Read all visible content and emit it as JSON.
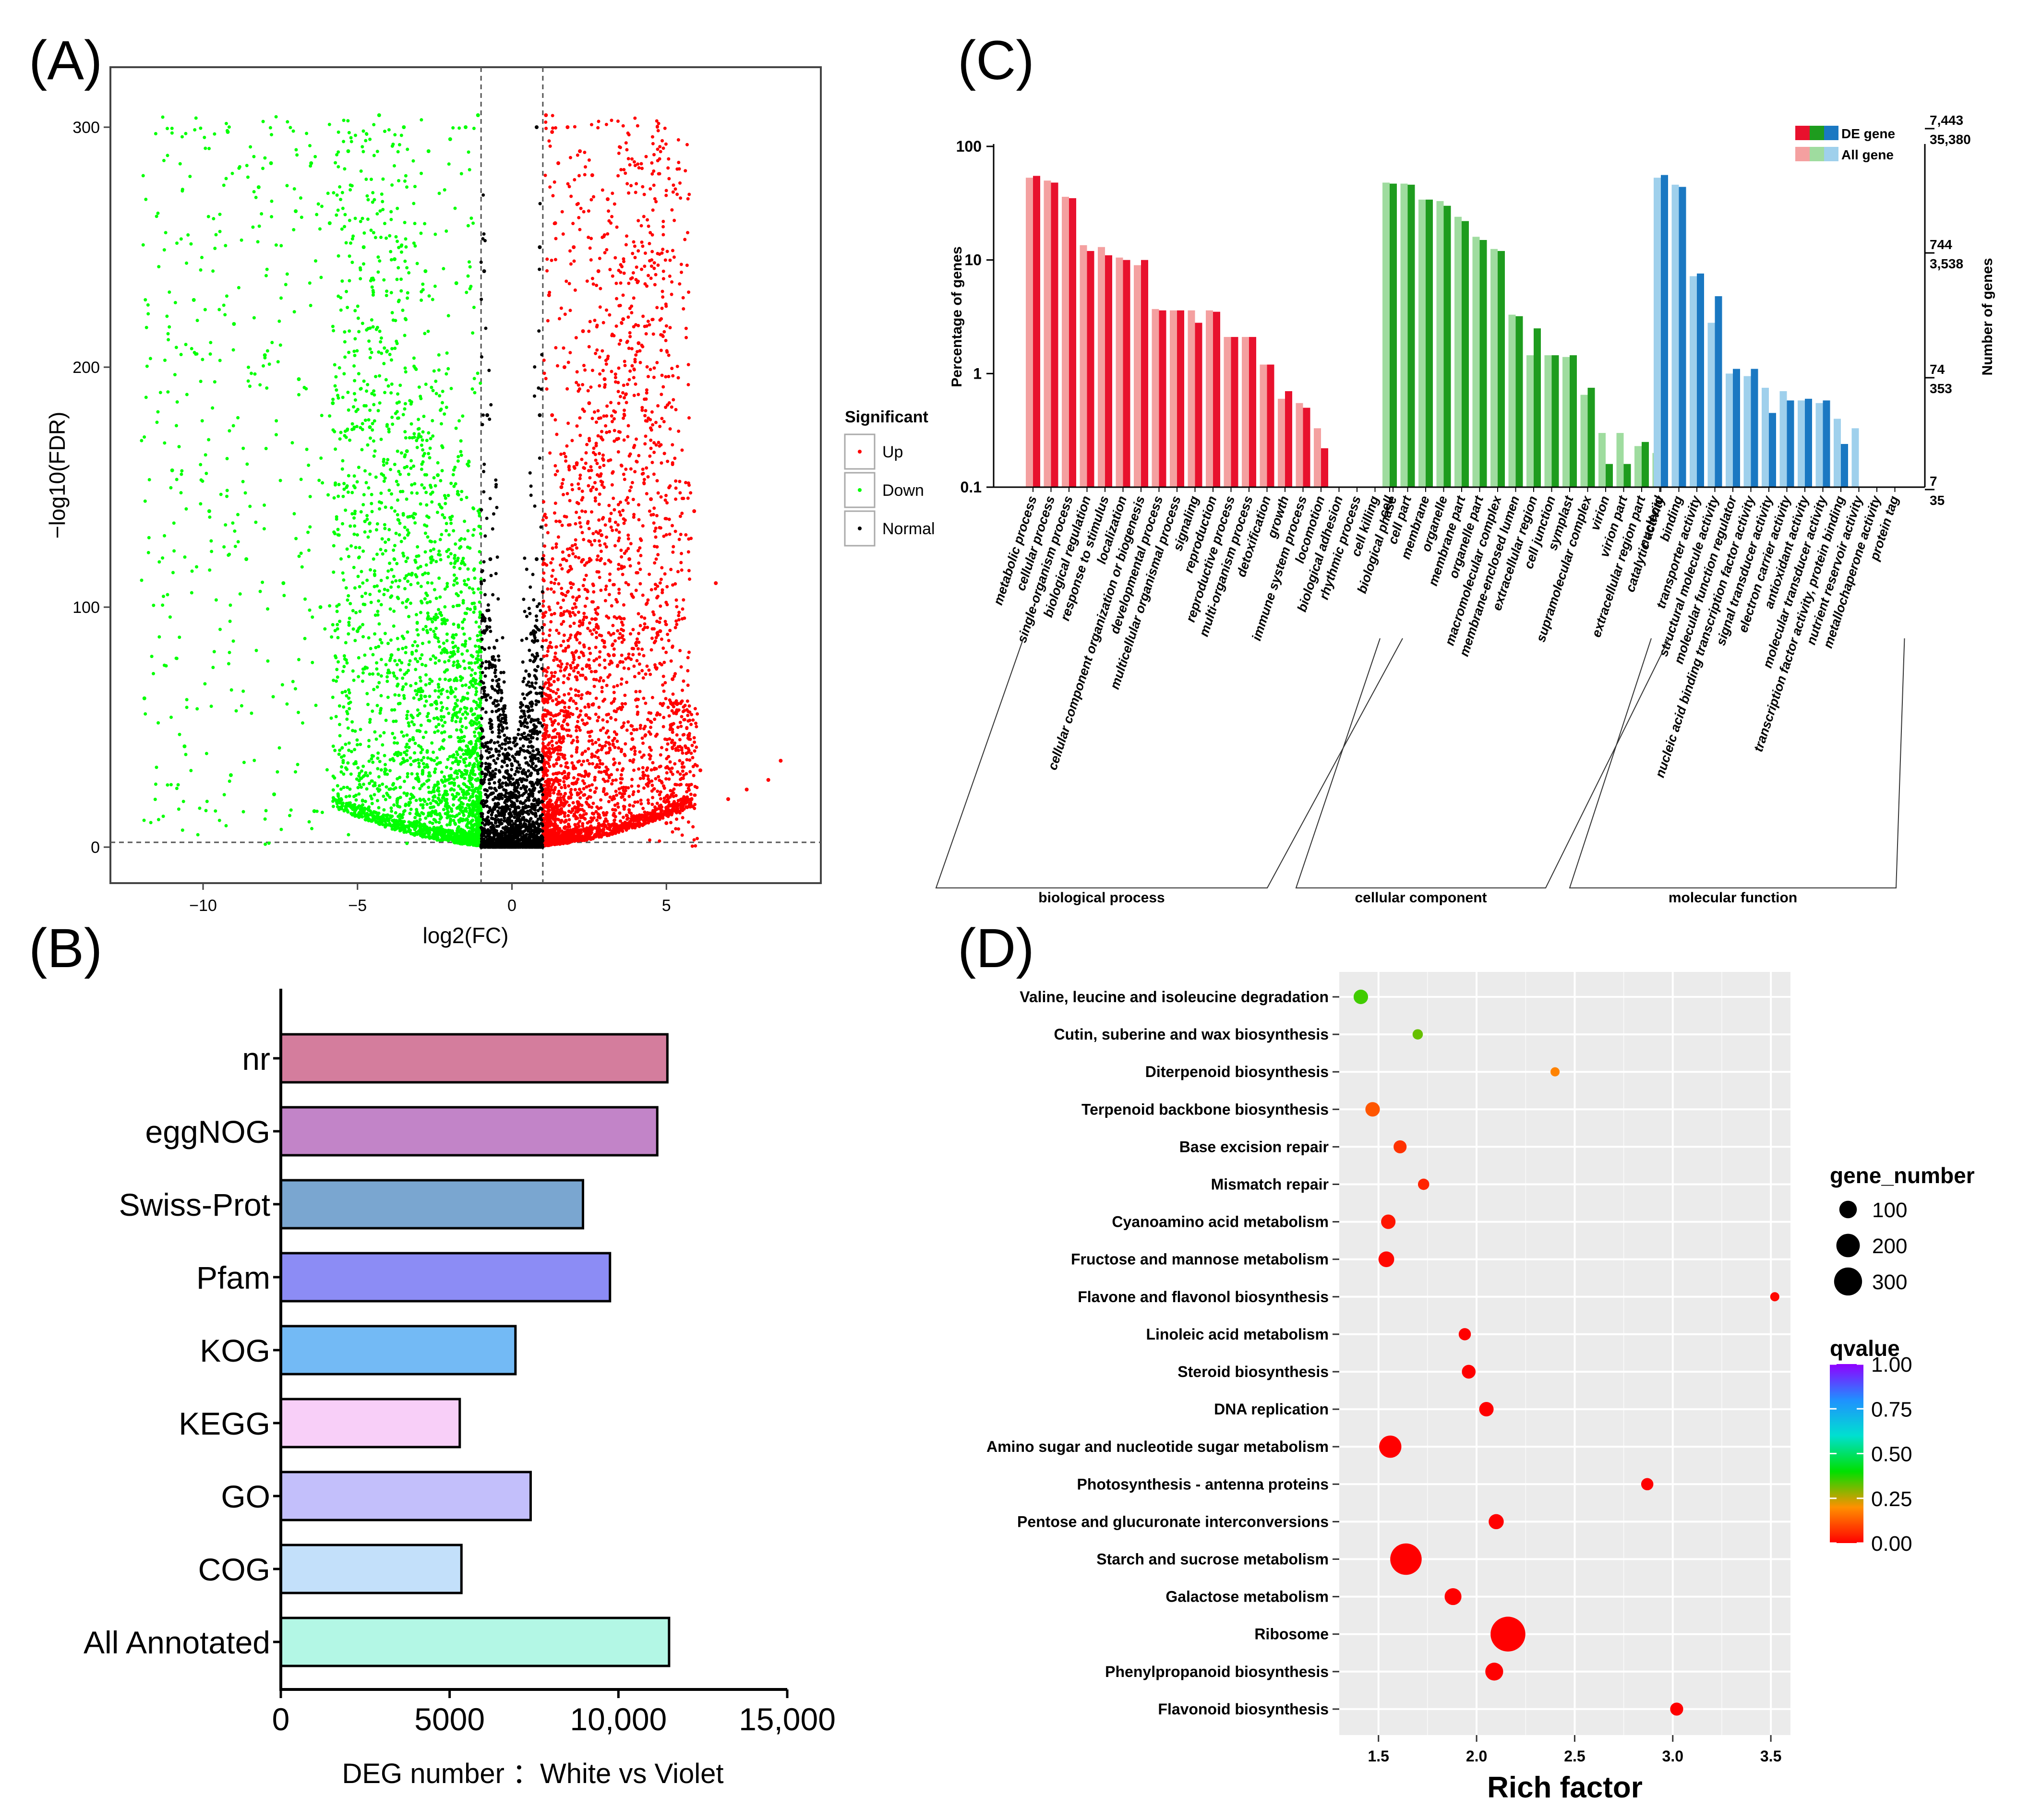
{
  "panels": {
    "A": {
      "letter": "(A)"
    },
    "B": {
      "letter": "(B)"
    },
    "C": {
      "letter": "(C)"
    },
    "D": {
      "letter": "(D)"
    }
  },
  "chart_data": [
    {
      "id": "A",
      "type": "scatter",
      "title": "",
      "xlabel": "log2(FC)",
      "ylabel": "−log10(FDR)",
      "xlim": [
        -13,
        10
      ],
      "ylim": [
        -15,
        325
      ],
      "xticks": [
        -10,
        -5,
        0,
        5
      ],
      "xtick_labels": [
        "−10",
        "−5",
        "0",
        "5"
      ],
      "yticks": [
        0,
        100,
        200,
        300
      ],
      "ytick_labels": [
        "0",
        "100",
        "200",
        "300"
      ],
      "thresholds": {
        "fc": [
          -1,
          1
        ],
        "fdr": 2
      },
      "legend": {
        "title": "Significant",
        "position": "right",
        "entries": [
          {
            "label": "Up",
            "color": "#ff0000"
          },
          {
            "label": "Down",
            "color": "#00ff00"
          },
          {
            "label": "Normal",
            "color": "#000000"
          }
        ]
      },
      "series": [
        {
          "name": "Up",
          "color": "#ff0000",
          "points": [
            [
              1.1,
              305
            ],
            [
              1.3,
              298
            ],
            [
              1.5,
              285
            ],
            [
              1.8,
              300
            ],
            [
              2.2,
              290
            ],
            [
              2.6,
              280
            ],
            [
              3.1,
              270
            ],
            [
              1.4,
              260
            ],
            [
              2.0,
              250
            ],
            [
              2.8,
              240
            ],
            [
              1.2,
              230
            ],
            [
              3.6,
              220
            ],
            [
              2.3,
              215
            ],
            [
              4.1,
              210
            ],
            [
              1.7,
              200
            ],
            [
              3.0,
              195
            ],
            [
              2.5,
              185
            ],
            [
              1.3,
              180
            ],
            [
              3.4,
              170
            ],
            [
              2.1,
              160
            ],
            [
              4.5,
              145
            ],
            [
              1.6,
              150
            ],
            [
              2.9,
              130
            ],
            [
              3.8,
              120
            ],
            [
              5.9,
              140
            ],
            [
              6.6,
              110
            ],
            [
              1.9,
              110
            ],
            [
              2.7,
              95
            ],
            [
              4.8,
              90
            ],
            [
              3.3,
              80
            ],
            [
              5.2,
              70
            ],
            [
              1.5,
              60
            ],
            [
              2.4,
              55
            ],
            [
              3.9,
              45
            ],
            [
              6.1,
              32
            ],
            [
              7.0,
              20
            ],
            [
              7.6,
              24
            ],
            [
              8.3,
              28
            ],
            [
              8.7,
              36
            ],
            [
              5.0,
              10
            ]
          ]
        },
        {
          "name": "Down",
          "color": "#00ff00",
          "points": [
            [
              -1.1,
              305
            ],
            [
              -1.5,
              300
            ],
            [
              -2.0,
              295
            ],
            [
              -2.7,
              290
            ],
            [
              -3.5,
              300
            ],
            [
              -4.3,
              305
            ],
            [
              -5.3,
              290
            ],
            [
              -6.5,
              285
            ],
            [
              -7.8,
              285
            ],
            [
              -9.2,
              298
            ],
            [
              -8.2,
              275
            ],
            [
              -7.0,
              265
            ],
            [
              -5.9,
              260
            ],
            [
              -4.8,
              250
            ],
            [
              -3.8,
              245
            ],
            [
              -2.8,
              240
            ],
            [
              -1.8,
              235
            ],
            [
              -10.3,
              228
            ],
            [
              -9.0,
              218
            ],
            [
              -8.0,
              205
            ],
            [
              -6.9,
              195
            ],
            [
              -5.8,
              185
            ],
            [
              -4.6,
              175
            ],
            [
              -3.4,
              165
            ],
            [
              -2.4,
              155
            ],
            [
              -11.0,
              157
            ],
            [
              -9.8,
              140
            ],
            [
              -8.6,
              120
            ],
            [
              -7.4,
              110
            ],
            [
              -6.2,
              100
            ],
            [
              -5.0,
              90
            ],
            [
              -3.9,
              80
            ],
            [
              -2.9,
              65
            ],
            [
              -1.9,
              55
            ],
            [
              -1.3,
              40
            ],
            [
              -11.9,
              62
            ],
            [
              -10.6,
              42
            ],
            [
              -9.1,
              30
            ],
            [
              -7.7,
              22
            ],
            [
              -6.4,
              15
            ]
          ]
        },
        {
          "name": "Normal",
          "color": "#000000",
          "points": [
            [
              -0.9,
              240
            ],
            [
              -0.8,
              180
            ],
            [
              -0.7,
              120
            ],
            [
              -0.9,
              90
            ],
            [
              -0.6,
              60
            ],
            [
              -0.5,
              40
            ],
            [
              -0.4,
              25
            ],
            [
              -0.3,
              15
            ],
            [
              -0.2,
              8
            ],
            [
              0.0,
              3
            ],
            [
              0.2,
              8
            ],
            [
              0.3,
              15
            ],
            [
              0.4,
              25
            ],
            [
              0.5,
              40
            ],
            [
              0.6,
              60
            ],
            [
              0.7,
              90
            ],
            [
              0.8,
              120
            ],
            [
              0.9,
              180
            ],
            [
              0.9,
              250
            ],
            [
              0.8,
              300
            ],
            [
              -0.6,
              30
            ],
            [
              0.6,
              30
            ],
            [
              -0.8,
              10
            ],
            [
              0.8,
              10
            ]
          ]
        }
      ]
    },
    {
      "id": "B",
      "type": "bar",
      "orientation": "horizontal",
      "categories": [
        "nr",
        "eggNOG",
        "Swiss-Prot",
        "Pfam",
        "KOG",
        "KEGG",
        "GO",
        "COG",
        "All Annotated"
      ],
      "values": [
        11450,
        11150,
        8950,
        9750,
        6950,
        5300,
        7400,
        5350,
        11500
      ],
      "colors": [
        "#d47d9d",
        "#c284c8",
        "#7aa6d0",
        "#8c8cf5",
        "#73baf5",
        "#f8cff8",
        "#c3bffb",
        "#c3e0fa",
        "#b3f7e5"
      ],
      "xlim": [
        0,
        15000
      ],
      "xticks": [
        0,
        5000,
        10000,
        15000
      ],
      "xtick_labels": [
        "0",
        "5000",
        "10,000",
        "15,000"
      ],
      "xlabel": "DEG number ：White vs Violet",
      "ylabel": "",
      "title": ""
    },
    {
      "id": "C",
      "type": "bar",
      "scale": "log",
      "ylabel": "Percentage of genes",
      "ylabel_right": "Number of genes",
      "yticks": [
        0.1,
        1,
        10,
        100
      ],
      "ytick_labels": [
        "0.1",
        "1",
        "10",
        "100"
      ],
      "ylim": [
        0.1,
        100
      ],
      "right_ticks": [
        {
          "de": "7,443",
          "all": "35,380"
        },
        {
          "de": "744",
          "all": "3,538"
        },
        {
          "de": "74",
          "all": "353"
        },
        {
          "de": "7",
          "all": "35"
        }
      ],
      "legend": {
        "position": "top-right",
        "entries": [
          {
            "label": "DE gene",
            "colors": [
              "#e8112d",
              "#1e9c1e",
              "#1a78c2"
            ]
          },
          {
            "label": "All gene",
            "colors": [
              "#f4a0a0",
              "#9fdc9f",
              "#9fd0ec"
            ]
          }
        ]
      },
      "groups": [
        {
          "name": "biological process",
          "de_color": "#e8112d",
          "all_color": "#f4a0a0",
          "categories": [
            "metabolic process",
            "cellular process",
            "single-organism process",
            "biological regulation",
            "response to stimulus",
            "localization",
            "cellular component organization or biogenesis",
            "developmental process",
            "multicellular organismal process",
            "signaling",
            "reproduction",
            "reproductive process",
            "multi-organism process",
            "detoxification",
            "growth",
            "immune system process",
            "locomotion",
            "biological adhesion",
            "rhythmic process",
            "cell killing",
            "biological phase"
          ],
          "de": [
            55,
            48,
            35,
            12,
            11,
            10,
            10,
            3.6,
            3.6,
            2.8,
            3.5,
            2.1,
            2.1,
            1.2,
            0.7,
            0.5,
            0.22,
            null,
            null,
            null,
            null
          ],
          "all": [
            53,
            50,
            36,
            13.5,
            13,
            10.5,
            9,
            3.7,
            3.6,
            3.6,
            3.6,
            2.1,
            2.1,
            1.2,
            0.6,
            0.55,
            0.33,
            null,
            null,
            null,
            null
          ]
        },
        {
          "name": "cellular component",
          "de_color": "#1e9c1e",
          "all_color": "#9fdc9f",
          "categories": [
            "cell",
            "cell part",
            "membrane",
            "organelle",
            "membrane part",
            "organelle part",
            "macromolecular complex",
            "membrane-enclosed lumen",
            "extracellular region",
            "cell junction",
            "symplast",
            "supramolecular complex",
            "virion",
            "virion part",
            "extracellular region part",
            "nucleoid"
          ],
          "de": [
            47,
            46,
            34,
            30,
            22,
            15,
            12,
            3.2,
            2.5,
            1.45,
            1.45,
            0.75,
            0.16,
            0.16,
            0.25,
            0.27
          ],
          "all": [
            48,
            47,
            34,
            33,
            24,
            16,
            12.5,
            3.3,
            1.45,
            1.45,
            1.4,
            0.65,
            0.3,
            0.3,
            0.23,
            0.2
          ]
        },
        {
          "name": "molecular function",
          "de_color": "#1a78c2",
          "all_color": "#9fd0ec",
          "categories": [
            "catalytic activity",
            "binding",
            "transporter activity",
            "structural molecule activity",
            "molecular function regulator",
            "nucleic acid binding transcription factor activity",
            "signal transducer activity",
            "electron carrier activity",
            "antioxidant activity",
            "molecular transducer activity",
            "transcription factor activity, protein binding",
            "nutrient reservoir activity",
            "metallochaperone activity",
            "protein tag"
          ],
          "de": [
            56,
            44,
            7.6,
            4.8,
            1.1,
            1.1,
            0.45,
            0.58,
            0.6,
            0.58,
            0.24,
            null,
            null,
            null
          ],
          "all": [
            53,
            46,
            7.2,
            2.8,
            1.0,
            0.95,
            0.75,
            0.7,
            0.58,
            0.55,
            0.4,
            0.33,
            null,
            null
          ]
        }
      ]
    },
    {
      "id": "D",
      "type": "scatter",
      "xlabel": "Rich factor",
      "ylabel": "",
      "xlim": [
        1.3,
        3.6
      ],
      "xticks": [
        1.5,
        2.0,
        2.5,
        3.0,
        3.5
      ],
      "xtick_labels": [
        "1.5",
        "2.0",
        "2.5",
        "3.0",
        "3.5"
      ],
      "grid": true,
      "pathways": [
        "Valine, leucine and isoleucine degradation",
        "Cutin, suberine and wax biosynthesis",
        "Diterpenoid biosynthesis",
        "Terpenoid backbone biosynthesis",
        "Base excision repair",
        "Mismatch repair",
        "Cyanoamino acid metabolism",
        "Fructose and mannose metabolism",
        "Flavone and flavonol biosynthesis",
        "Linoleic acid metabolism",
        "Steroid biosynthesis",
        "DNA replication",
        "Amino sugar and nucleotide sugar metabolism",
        "Photosynthesis - antenna proteins",
        "Pentose and glucuronate interconversions",
        "Starch and sucrose metabolism",
        "Galactose metabolism",
        "Ribosome",
        "Phenylpropanoid biosynthesis",
        "Flavonoid biosynthesis"
      ],
      "rich_factor": [
        1.41,
        1.7,
        2.4,
        1.47,
        1.61,
        1.73,
        1.55,
        1.54,
        3.52,
        1.94,
        1.96,
        2.05,
        1.56,
        2.87,
        2.1,
        1.64,
        1.88,
        2.16,
        2.09,
        3.02
      ],
      "gene_number": [
        40,
        15,
        10,
        40,
        30,
        20,
        40,
        50,
        10,
        25,
        35,
        40,
        120,
        25,
        45,
        270,
        60,
        340,
        70,
        30
      ],
      "qvalue": [
        0.35,
        0.32,
        0.18,
        0.12,
        0.07,
        0.05,
        0.03,
        0.01,
        0.01,
        0.0,
        0.0,
        0.0,
        0.0,
        0.0,
        0.0,
        0.0,
        0.0,
        0.0,
        0.0,
        0.0
      ],
      "legend_size": {
        "title": "gene_number",
        "position": "right",
        "values": [
          100,
          200,
          300
        ]
      },
      "legend_color": {
        "title": "qvalue",
        "position": "right",
        "ticks": [
          1.0,
          0.75,
          0.5,
          0.25,
          0.0
        ],
        "tick_labels": [
          "1.00",
          "0.75",
          "0.50",
          "0.25",
          "0.00"
        ]
      }
    }
  ]
}
